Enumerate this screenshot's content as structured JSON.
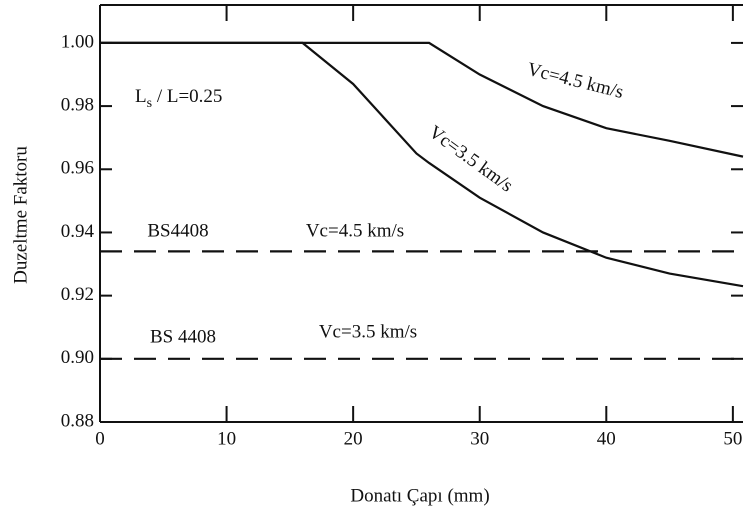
{
  "chart_data": {
    "type": "line",
    "xlabel": "Donatı Çapı (mm)",
    "ylabel": "Duzeltme Faktoru",
    "x": [
      0,
      16,
      20,
      25,
      26,
      30,
      35,
      40,
      45,
      50.8
    ],
    "series": [
      {
        "color": "#111111",
        "dashed": false,
        "values": [
          1.0,
          1.0,
          1.0,
          1.0,
          1.0,
          0.99,
          0.98,
          0.973,
          0.969,
          0.964
        ]
      },
      {
        "color": "#111111",
        "dashed": false,
        "values": [
          1.0,
          1.0,
          0.987,
          0.965,
          0.962,
          0.951,
          0.94,
          0.932,
          0.927,
          0.923
        ]
      },
      {
        "color": "#111111",
        "dashed": true,
        "values": [
          0.934,
          0.934,
          0.934,
          0.934,
          0.934,
          0.934,
          0.934,
          0.934,
          0.934,
          0.934
        ]
      },
      {
        "color": "#111111",
        "dashed": true,
        "values": [
          0.9,
          0.9,
          0.9,
          0.9,
          0.9,
          0.9,
          0.9,
          0.9,
          0.9,
          0.9
        ]
      }
    ],
    "annotations": [
      "Vc=4.5 km/s",
      "Vc=3.5 km/s",
      "BS4408",
      "Vc=4.5 km/s",
      "BS 4408",
      "Vc=3.5 km/s"
    ],
    "ratio_label": {
      "main": "L",
      "sub": "s",
      "rest": " / L=0.25"
    },
    "xlim": [
      0,
      50.8
    ],
    "ylim": [
      0.88,
      1.012
    ],
    "xticks": [
      0,
      10,
      20,
      30,
      40,
      50
    ],
    "yticks": [
      {
        "value": 0.88,
        "label": "0.88"
      },
      {
        "value": 0.9,
        "label": "0.90"
      },
      {
        "value": 0.92,
        "label": "0.92"
      },
      {
        "value": 0.94,
        "label": "0.94"
      },
      {
        "value": 0.96,
        "label": "0.96"
      },
      {
        "value": 0.98,
        "label": "0.98"
      },
      {
        "value": 1.0,
        "label": "1.00"
      }
    ]
  }
}
